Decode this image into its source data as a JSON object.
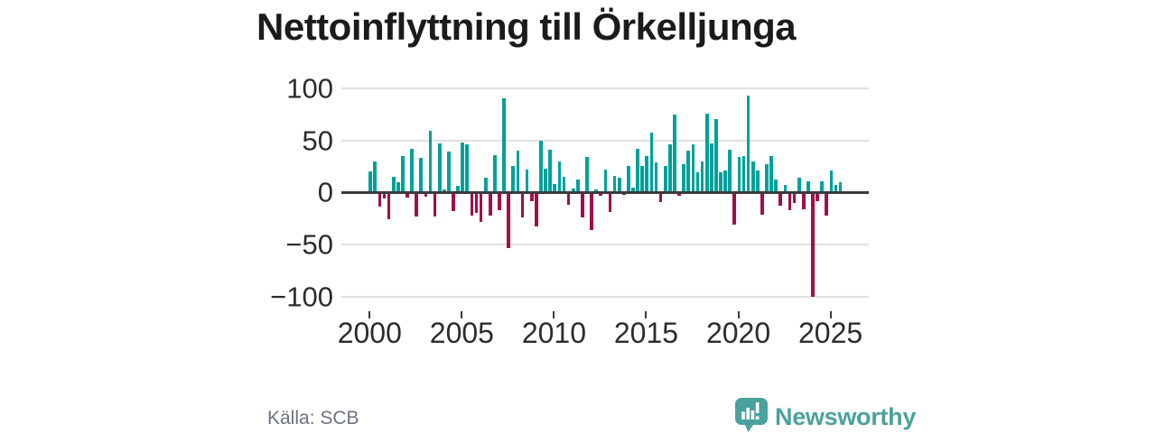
{
  "title": "Nettoinflyttning till Örkelljunga",
  "source": "Källa: SCB",
  "branding": {
    "name": "Newsworthy",
    "logo_icon": "speech-bubble-bar-chart-icon",
    "color": "#4ba29d"
  },
  "chart_data": {
    "type": "bar",
    "title": "Nettoinflyttning till Örkelljunga",
    "xlabel": "",
    "ylabel": "",
    "frequency": "quarterly",
    "x_start": "2000 Q1",
    "x_end": "2025 Q3",
    "x_tick_labels": [
      "2000",
      "2005",
      "2010",
      "2015",
      "2020",
      "2025"
    ],
    "y_tick_labels": [
      "100",
      "50",
      "0",
      "−50",
      "−100"
    ],
    "y_tick_values": [
      100,
      50,
      0,
      -50,
      -100
    ],
    "ylim": [
      -110,
      105
    ],
    "grid": "horizontal",
    "legend": "none",
    "colors": {
      "positive": "#00a19b",
      "negative": "#a30e4a",
      "axis": "#3b3b3b",
      "gridline": "#e1e1e1"
    },
    "series": [
      {
        "name": "Nettoinflyttning",
        "values": [
          20,
          30,
          -14,
          -6,
          -26,
          15,
          10,
          35,
          -5,
          42,
          -23,
          33,
          -4,
          59,
          -23,
          47,
          3,
          39,
          -18,
          6,
          48,
          46,
          -22,
          -20,
          -28,
          14,
          -22,
          36,
          -17,
          90,
          -53,
          25,
          40,
          -24,
          22,
          -8,
          -33,
          50,
          23,
          41,
          8,
          30,
          15,
          -12,
          4,
          12,
          -24,
          34,
          -36,
          3,
          -3,
          22,
          -19,
          16,
          14,
          -2,
          25,
          5,
          42,
          25,
          35,
          57,
          29,
          -9,
          25,
          46,
          75,
          -3,
          27,
          40,
          46,
          19,
          30,
          76,
          47,
          70,
          19,
          21,
          41,
          -31,
          34,
          35,
          93,
          30,
          21,
          -21,
          27,
          35,
          12,
          -13,
          7,
          -17,
          -10,
          14,
          -16,
          11,
          -100,
          -8,
          11,
          -22,
          21,
          7,
          10
        ]
      }
    ]
  }
}
